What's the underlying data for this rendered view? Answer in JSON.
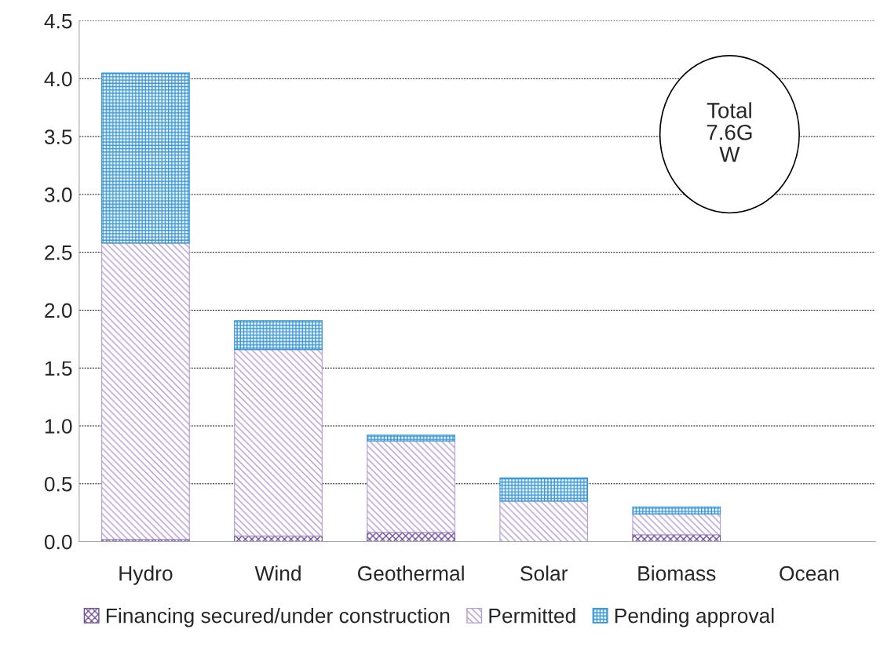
{
  "chart_data": {
    "type": "bar",
    "stacked": true,
    "categories": [
      "Hydro",
      "Wind",
      "Geothermal",
      "Solar",
      "Biomass",
      "Ocean"
    ],
    "series": [
      {
        "name": "Financing secured/under construction",
        "color": "#6f4f98",
        "values": [
          0.02,
          0.05,
          0.08,
          0,
          0.06,
          0
        ]
      },
      {
        "name": "Permitted",
        "color": "#b39bd3",
        "values": [
          2.56,
          1.61,
          0.79,
          0.35,
          0.18,
          0
        ]
      },
      {
        "name": "Pending approval",
        "color": "#3494d4",
        "values": [
          1.47,
          0.25,
          0.05,
          0.2,
          0.06,
          0
        ]
      }
    ],
    "ylim": [
      0,
      4.5
    ],
    "yticks": [
      {
        "value": 0,
        "label": "0.0"
      },
      0.5,
      {
        "value": 1,
        "label": "1.0"
      },
      1.5,
      {
        "value": 2,
        "label": "2.0"
      },
      2.5,
      {
        "value": 3,
        "label": "3.0"
      },
      3.5,
      {
        "value": 4,
        "label": "4.0"
      },
      4.5
    ],
    "grid": "y",
    "legend": "bottom",
    "annotations": [
      "Total\n7.6G\nW"
    ]
  }
}
